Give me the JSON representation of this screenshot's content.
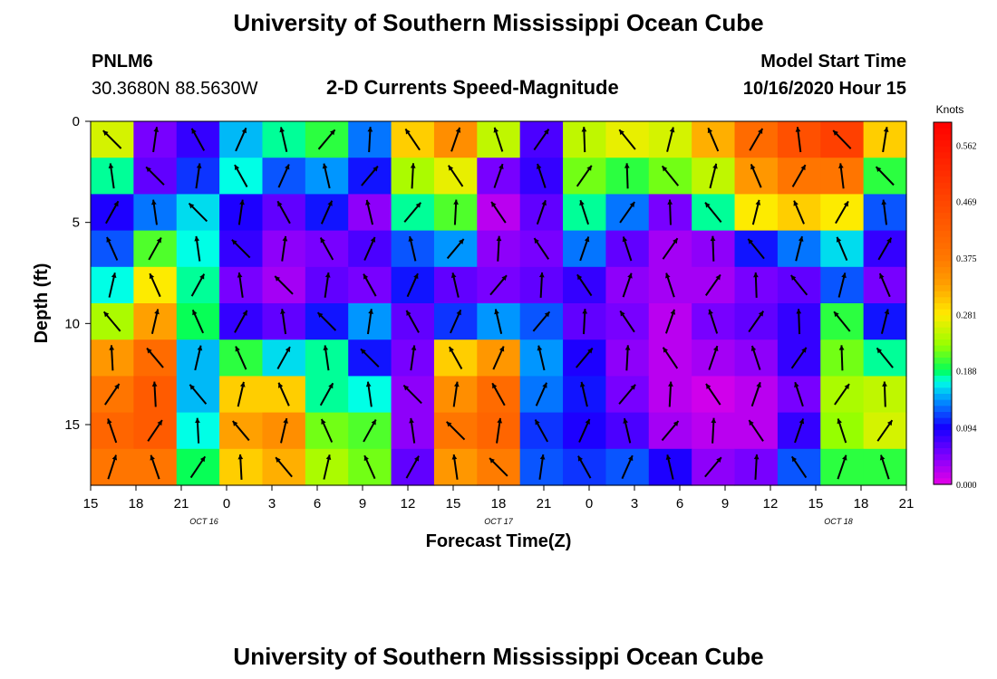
{
  "page": {
    "title_top": "University of Southern Mississippi Ocean Cube",
    "title_bottom": "University of Southern Mississippi Ocean Cube",
    "station_id": "PNLM6",
    "station_coords": "30.3680N 88.5630W",
    "plot_subtitle": "2-D Currents Speed-Magnitude",
    "model_label": "Model Start Time",
    "model_time": "10/16/2020 Hour 15"
  },
  "chart_data": {
    "type": "heatmap",
    "title": "2-D Currents Speed-Magnitude",
    "xlabel": "Forecast Time(Z)",
    "ylabel": "Depth (ft)",
    "x_ticks": [
      "15",
      "18",
      "21",
      "0",
      "3",
      "6",
      "9",
      "12",
      "15",
      "18",
      "21",
      "0",
      "3",
      "6",
      "9",
      "12",
      "15",
      "18",
      "21"
    ],
    "date_labels": [
      {
        "text": "OCT  16",
        "at_hour": 22.5
      },
      {
        "text": "OCT  17",
        "at_hour": 42
      },
      {
        "text": "OCT  18",
        "at_hour": 64.5
      }
    ],
    "xlim_hours": [
      15,
      69
    ],
    "y_ticks": [
      "0",
      "5",
      "10",
      "15"
    ],
    "ylim_ft": [
      0,
      18
    ],
    "colorbar": {
      "unit": "Knots",
      "labels": [
        "0.562",
        "0.469",
        "0.375",
        "0.281",
        "0.188",
        "0.094",
        "0.000"
      ],
      "range": [
        0,
        0.6
      ]
    },
    "depth_rows_ft": [
      0,
      1.8,
      3.6,
      5.4,
      7.2,
      9,
      10.8,
      12.6,
      14.4,
      16.2
    ],
    "time_hours": [
      15,
      18,
      21,
      24,
      27,
      30,
      33,
      36,
      39,
      42,
      45,
      48,
      51,
      54,
      57,
      60,
      63,
      66,
      69
    ],
    "speed_knots": [
      [
        0.26,
        0.05,
        0.08,
        0.15,
        0.18,
        0.2,
        0.13,
        0.3,
        0.35,
        0.25,
        0.07,
        0.25,
        0.27,
        0.26,
        0.32,
        0.4,
        0.45,
        0.48,
        0.3
      ],
      [
        0.18,
        0.06,
        0.11,
        0.17,
        0.12,
        0.14,
        0.1,
        0.24,
        0.27,
        0.05,
        0.08,
        0.22,
        0.2,
        0.22,
        0.25,
        0.34,
        0.38,
        0.38,
        0.2
      ],
      [
        0.09,
        0.13,
        0.16,
        0.09,
        0.06,
        0.1,
        0.04,
        0.18,
        0.21,
        0.02,
        0.06,
        0.18,
        0.13,
        0.05,
        0.18,
        0.28,
        0.3,
        0.28,
        0.12
      ],
      [
        0.12,
        0.21,
        0.17,
        0.08,
        0.04,
        0.05,
        0.07,
        0.12,
        0.14,
        0.04,
        0.05,
        0.13,
        0.06,
        0.03,
        0.04,
        0.1,
        0.13,
        0.16,
        0.08
      ],
      [
        0.17,
        0.28,
        0.18,
        0.05,
        0.03,
        0.06,
        0.05,
        0.1,
        0.06,
        0.05,
        0.06,
        0.08,
        0.04,
        0.03,
        0.03,
        0.05,
        0.06,
        0.12,
        0.05
      ],
      [
        0.24,
        0.33,
        0.19,
        0.08,
        0.06,
        0.1,
        0.14,
        0.06,
        0.11,
        0.14,
        0.12,
        0.06,
        0.05,
        0.02,
        0.05,
        0.06,
        0.08,
        0.2,
        0.1
      ],
      [
        0.34,
        0.4,
        0.15,
        0.2,
        0.16,
        0.18,
        0.1,
        0.05,
        0.3,
        0.34,
        0.14,
        0.09,
        0.04,
        0.02,
        0.03,
        0.04,
        0.08,
        0.22,
        0.18
      ],
      [
        0.38,
        0.43,
        0.15,
        0.3,
        0.3,
        0.18,
        0.17,
        0.04,
        0.35,
        0.4,
        0.13,
        0.1,
        0.05,
        0.02,
        0.01,
        0.02,
        0.05,
        0.24,
        0.25
      ],
      [
        0.41,
        0.43,
        0.17,
        0.33,
        0.35,
        0.22,
        0.21,
        0.04,
        0.38,
        0.41,
        0.11,
        0.09,
        0.07,
        0.03,
        0.02,
        0.02,
        0.08,
        0.23,
        0.26
      ],
      [
        0.38,
        0.38,
        0.19,
        0.3,
        0.32,
        0.24,
        0.22,
        0.06,
        0.34,
        0.37,
        0.12,
        0.11,
        0.12,
        0.09,
        0.04,
        0.05,
        0.12,
        0.2,
        0.2
      ]
    ]
  }
}
